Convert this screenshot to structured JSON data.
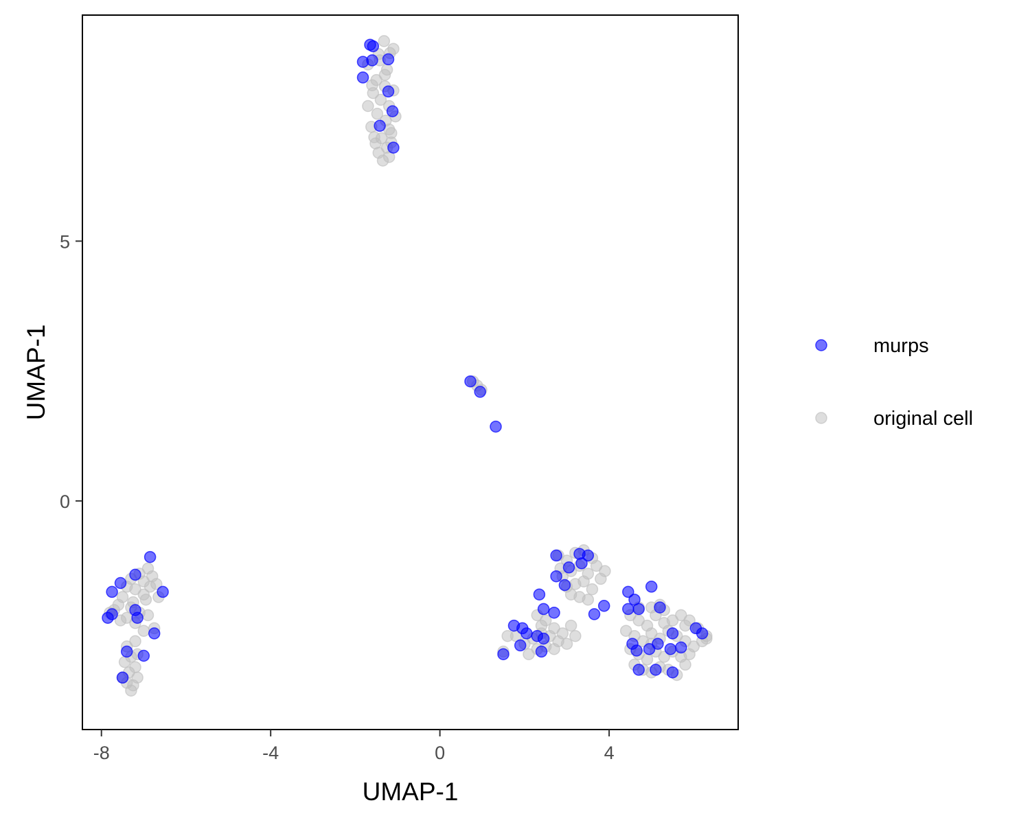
{
  "chart_data": {
    "type": "scatter",
    "title": "",
    "xlabel": "UMAP-1",
    "ylabel": "UMAP-1",
    "xlim": [
      -8.45,
      7.05
    ],
    "ylim": [
      -4.4,
      9.35
    ],
    "x_ticks": [
      -8,
      -4,
      0,
      4
    ],
    "x_tick_labels": [
      "-8",
      "-4",
      "0",
      "4"
    ],
    "y_ticks": [
      0,
      5
    ],
    "y_tick_labels": [
      "0",
      "5"
    ],
    "grid": false,
    "legend_position": "right",
    "series": [
      {
        "name": "original cell",
        "color": "#bebebe",
        "opacity": 0.5,
        "points": [
          [
            -1.32,
            8.85
          ],
          [
            -1.18,
            8.62
          ],
          [
            -1.42,
            8.48
          ],
          [
            -1.25,
            8.3
          ],
          [
            -1.5,
            8.1
          ],
          [
            -1.3,
            7.98
          ],
          [
            -1.58,
            7.85
          ],
          [
            -1.4,
            7.72
          ],
          [
            -1.2,
            7.6
          ],
          [
            -1.48,
            7.45
          ],
          [
            -1.28,
            7.32
          ],
          [
            -1.62,
            7.2
          ],
          [
            -1.15,
            7.08
          ],
          [
            -1.38,
            6.98
          ],
          [
            -1.52,
            6.88
          ],
          [
            -1.25,
            6.8
          ],
          [
            -1.45,
            6.7
          ],
          [
            -1.2,
            6.62
          ],
          [
            -1.35,
            6.55
          ],
          [
            -1.1,
            8.7
          ],
          [
            -1.7,
            8.4
          ],
          [
            -1.6,
            8.0
          ],
          [
            -1.1,
            7.9
          ],
          [
            -1.7,
            7.6
          ],
          [
            -1.05,
            7.4
          ],
          [
            -1.55,
            7.0
          ],
          [
            -1.15,
            6.9
          ],
          [
            -1.3,
            8.2
          ],
          [
            -1.45,
            8.6
          ],
          [
            -1.2,
            7.15
          ],
          [
            0.78,
            2.3
          ],
          [
            0.88,
            2.22
          ],
          [
            0.98,
            2.14
          ],
          [
            -7.3,
            -1.5
          ],
          [
            -7.1,
            -1.4
          ],
          [
            -6.9,
            -1.3
          ],
          [
            -7.0,
            -1.55
          ],
          [
            -7.2,
            -1.7
          ],
          [
            -6.8,
            -1.45
          ],
          [
            -7.4,
            -1.65
          ],
          [
            -7.0,
            -1.8
          ],
          [
            -7.25,
            -1.95
          ],
          [
            -6.95,
            -1.9
          ],
          [
            -7.5,
            -1.85
          ],
          [
            -7.6,
            -2.0
          ],
          [
            -7.3,
            -2.05
          ],
          [
            -7.1,
            -2.15
          ],
          [
            -7.4,
            -2.25
          ],
          [
            -7.7,
            -2.1
          ],
          [
            -7.55,
            -2.3
          ],
          [
            -7.2,
            -2.35
          ],
          [
            -6.9,
            -2.2
          ],
          [
            -6.75,
            -2.45
          ],
          [
            -6.7,
            -1.6
          ],
          [
            -6.65,
            -1.85
          ],
          [
            -7.0,
            -2.5
          ],
          [
            -7.2,
            -2.7
          ],
          [
            -7.4,
            -2.8
          ],
          [
            -7.3,
            -3.0
          ],
          [
            -7.15,
            -2.95
          ],
          [
            -7.45,
            -3.1
          ],
          [
            -7.35,
            -3.3
          ],
          [
            -7.2,
            -3.2
          ],
          [
            -7.4,
            -3.5
          ],
          [
            -7.3,
            -3.65
          ],
          [
            -7.25,
            -3.55
          ],
          [
            -7.5,
            -3.4
          ],
          [
            -7.15,
            -3.4
          ],
          [
            -7.8,
            -2.15
          ],
          [
            -6.85,
            -1.65
          ],
          [
            2.8,
            -1.05
          ],
          [
            3.0,
            -1.15
          ],
          [
            3.2,
            -1.0
          ],
          [
            3.4,
            -0.95
          ],
          [
            3.6,
            -1.1
          ],
          [
            3.3,
            -1.25
          ],
          [
            3.1,
            -1.35
          ],
          [
            2.9,
            -1.45
          ],
          [
            3.5,
            -1.4
          ],
          [
            3.7,
            -1.25
          ],
          [
            3.4,
            -1.55
          ],
          [
            3.2,
            -1.6
          ],
          [
            3.0,
            -1.65
          ],
          [
            3.6,
            -1.7
          ],
          [
            3.8,
            -1.5
          ],
          [
            3.1,
            -1.8
          ],
          [
            3.3,
            -1.85
          ],
          [
            3.5,
            -1.9
          ],
          [
            2.85,
            -1.3
          ],
          [
            3.9,
            -1.35
          ],
          [
            2.3,
            -2.2
          ],
          [
            2.5,
            -2.3
          ],
          [
            2.7,
            -2.45
          ],
          [
            2.4,
            -2.55
          ],
          [
            2.6,
            -2.6
          ],
          [
            2.2,
            -2.65
          ],
          [
            2.9,
            -2.55
          ],
          [
            3.1,
            -2.4
          ],
          [
            3.2,
            -2.6
          ],
          [
            2.8,
            -2.7
          ],
          [
            2.5,
            -2.8
          ],
          [
            2.3,
            -2.85
          ],
          [
            2.0,
            -2.75
          ],
          [
            1.8,
            -2.6
          ],
          [
            1.6,
            -2.6
          ],
          [
            1.5,
            -2.9
          ],
          [
            2.7,
            -2.85
          ],
          [
            3.0,
            -2.75
          ],
          [
            2.1,
            -2.95
          ],
          [
            2.4,
            -2.4
          ],
          [
            4.5,
            -2.2
          ],
          [
            4.7,
            -2.3
          ],
          [
            4.9,
            -2.4
          ],
          [
            5.1,
            -2.2
          ],
          [
            5.3,
            -2.1
          ],
          [
            5.5,
            -2.3
          ],
          [
            5.7,
            -2.2
          ],
          [
            5.9,
            -2.3
          ],
          [
            6.1,
            -2.45
          ],
          [
            6.3,
            -2.6
          ],
          [
            4.4,
            -2.5
          ],
          [
            4.6,
            -2.6
          ],
          [
            4.8,
            -2.7
          ],
          [
            5.0,
            -2.55
          ],
          [
            5.2,
            -2.65
          ],
          [
            5.4,
            -2.5
          ],
          [
            5.6,
            -2.6
          ],
          [
            5.8,
            -2.7
          ],
          [
            6.0,
            -2.8
          ],
          [
            6.2,
            -2.7
          ],
          [
            4.5,
            -2.85
          ],
          [
            4.7,
            -2.95
          ],
          [
            4.9,
            -3.05
          ],
          [
            5.1,
            -2.9
          ],
          [
            5.3,
            -3.0
          ],
          [
            5.5,
            -2.9
          ],
          [
            5.7,
            -3.0
          ],
          [
            5.9,
            -2.95
          ],
          [
            4.6,
            -3.15
          ],
          [
            4.8,
            -3.25
          ],
          [
            5.0,
            -3.3
          ],
          [
            5.2,
            -3.2
          ],
          [
            5.4,
            -3.25
          ],
          [
            5.6,
            -3.35
          ],
          [
            5.8,
            -3.15
          ],
          [
            5.0,
            -2.05
          ],
          [
            5.2,
            -2.0
          ],
          [
            4.7,
            -2.05
          ],
          [
            5.8,
            -2.4
          ],
          [
            6.3,
            -2.65
          ],
          [
            5.3,
            -2.35
          ],
          [
            5.0,
            -2.75
          ]
        ]
      },
      {
        "name": "murps",
        "color": "#0000ff",
        "opacity": 0.55,
        "points": [
          [
            -1.65,
            8.78
          ],
          [
            -1.58,
            8.75
          ],
          [
            -1.82,
            8.45
          ],
          [
            -1.6,
            8.48
          ],
          [
            -1.22,
            8.5
          ],
          [
            -1.82,
            8.15
          ],
          [
            -1.22,
            7.88
          ],
          [
            -1.12,
            7.5
          ],
          [
            -1.42,
            7.22
          ],
          [
            -1.1,
            6.8
          ],
          [
            0.72,
            2.3
          ],
          [
            0.95,
            2.1
          ],
          [
            1.32,
            1.43
          ],
          [
            -6.85,
            -1.08
          ],
          [
            -7.2,
            -1.42
          ],
          [
            -7.55,
            -1.58
          ],
          [
            -7.75,
            -1.75
          ],
          [
            -6.55,
            -1.75
          ],
          [
            -7.85,
            -2.25
          ],
          [
            -7.75,
            -2.18
          ],
          [
            -7.2,
            -2.1
          ],
          [
            -7.15,
            -2.25
          ],
          [
            -6.75,
            -2.55
          ],
          [
            -7.4,
            -2.9
          ],
          [
            -7.0,
            -2.98
          ],
          [
            -7.5,
            -3.4
          ],
          [
            2.75,
            -1.05
          ],
          [
            3.3,
            -1.02
          ],
          [
            3.5,
            -1.05
          ],
          [
            3.05,
            -1.28
          ],
          [
            3.35,
            -1.2
          ],
          [
            2.75,
            -1.45
          ],
          [
            2.95,
            -1.62
          ],
          [
            2.35,
            -1.8
          ],
          [
            2.45,
            -2.08
          ],
          [
            2.7,
            -2.15
          ],
          [
            1.75,
            -2.4
          ],
          [
            1.95,
            -2.45
          ],
          [
            2.05,
            -2.55
          ],
          [
            2.3,
            -2.6
          ],
          [
            2.45,
            -2.65
          ],
          [
            1.9,
            -2.78
          ],
          [
            2.4,
            -2.9
          ],
          [
            1.5,
            -2.95
          ],
          [
            3.65,
            -2.18
          ],
          [
            3.88,
            -2.02
          ],
          [
            4.45,
            -1.75
          ],
          [
            4.6,
            -1.9
          ],
          [
            4.45,
            -2.08
          ],
          [
            4.7,
            -2.08
          ],
          [
            5.0,
            -1.65
          ],
          [
            5.2,
            -2.05
          ],
          [
            5.5,
            -2.55
          ],
          [
            6.05,
            -2.45
          ],
          [
            6.2,
            -2.55
          ],
          [
            4.55,
            -2.75
          ],
          [
            4.65,
            -2.88
          ],
          [
            4.95,
            -2.85
          ],
          [
            5.15,
            -2.75
          ],
          [
            5.45,
            -2.85
          ],
          [
            5.7,
            -2.82
          ],
          [
            4.7,
            -3.25
          ],
          [
            5.1,
            -3.25
          ],
          [
            5.5,
            -3.3
          ]
        ]
      }
    ]
  }
}
